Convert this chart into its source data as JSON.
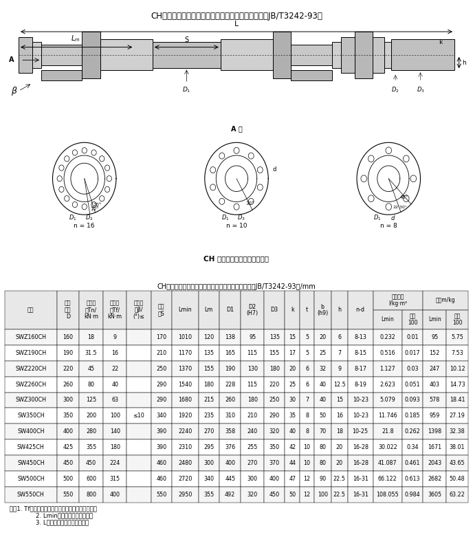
{
  "title_top": "CH型长伸缩焊接式万向联轴机基本参数和主要尺寸（JB/T3242-93）",
  "table_title": "CH型长伸缩焊接式万向联轴器基本参数和主要尺寸（JB/T3242-93）/mm",
  "diagram_label": "CH 型长伸缩焊接式万向联轴器",
  "note1": "注：1. Tf为在交变负荷下按疲劳强度所允许的转矩。",
  "note2": "    2. Lmin为缩短后的最小长度。",
  "note3": "    3. L为安装长度，按需要确定。",
  "rows": [
    [
      "SWZ160CH",
      "160",
      "18",
      "9",
      "",
      "170",
      "1010",
      "120",
      "138",
      "95",
      "135",
      "15",
      "5",
      "20",
      "6",
      "8-13",
      "0.232",
      "0.01",
      "95",
      "5.75"
    ],
    [
      "SWZ190CH",
      "190",
      "31.5",
      "16",
      "",
      "210",
      "1170",
      "135",
      "165",
      "115",
      "155",
      "17",
      "5",
      "25",
      "7",
      "8-15",
      "0.516",
      "0.017",
      "152",
      "7.53"
    ],
    [
      "SWZ220CH",
      "220",
      "45",
      "22",
      "",
      "250",
      "1370",
      "155",
      "190",
      "130",
      "180",
      "20",
      "6",
      "32",
      "9",
      "8-17",
      "1.127",
      "0.03",
      "247",
      "10.12"
    ],
    [
      "SWZ260CH",
      "260",
      "80",
      "40",
      "",
      "290",
      "1540",
      "180",
      "228",
      "115",
      "220",
      "25",
      "6",
      "40",
      "12.5",
      "8-19",
      "2.623",
      "0.051",
      "403",
      "14.73"
    ],
    [
      "SWZ300CH",
      "300",
      "125",
      "63",
      "",
      "290",
      "1680",
      "215",
      "260",
      "180",
      "250",
      "30",
      "7",
      "40",
      "15",
      "10-23",
      "5.079",
      "0.093",
      "578",
      "18.41"
    ],
    [
      "SW350CH",
      "350",
      "200",
      "100",
      "≤10",
      "340",
      "1920",
      "235",
      "310",
      "210",
      "290",
      "35",
      "8",
      "50",
      "16",
      "10-23",
      "11.746",
      "0.185",
      "959",
      "27.19"
    ],
    [
      "SW400CH",
      "400",
      "280",
      "140",
      "",
      "390",
      "2240",
      "270",
      "358",
      "240",
      "320",
      "40",
      "8",
      "70",
      "18",
      "10-25",
      "21.8",
      "0.262",
      "1398",
      "32.38"
    ],
    [
      "SW425CH",
      "425",
      "355",
      "180",
      "",
      "390",
      "2310",
      "295",
      "376",
      "255",
      "350",
      "42",
      "10",
      "80",
      "20",
      "16-28",
      "30.022",
      "0.34",
      "1671",
      "38.01"
    ],
    [
      "SW450CH",
      "450",
      "450",
      "224",
      "",
      "460",
      "2480",
      "300",
      "400",
      "270",
      "370",
      "44",
      "10",
      "80",
      "20",
      "16-28",
      "41.087",
      "0.461",
      "2043",
      "43.65"
    ],
    [
      "SW500CH",
      "500",
      "600",
      "315",
      "",
      "460",
      "2720",
      "340",
      "445",
      "300",
      "400",
      "47",
      "12",
      "90",
      "22.5",
      "16-31",
      "66.122",
      "0.613",
      "2682",
      "50.48"
    ],
    [
      "SW550CH",
      "550",
      "800",
      "400",
      "",
      "550",
      "2950",
      "355",
      "492",
      "320",
      "450",
      "50",
      "12",
      "100",
      "22.5",
      "16-31",
      "108.055",
      "0.984",
      "3605",
      "63.22"
    ]
  ]
}
